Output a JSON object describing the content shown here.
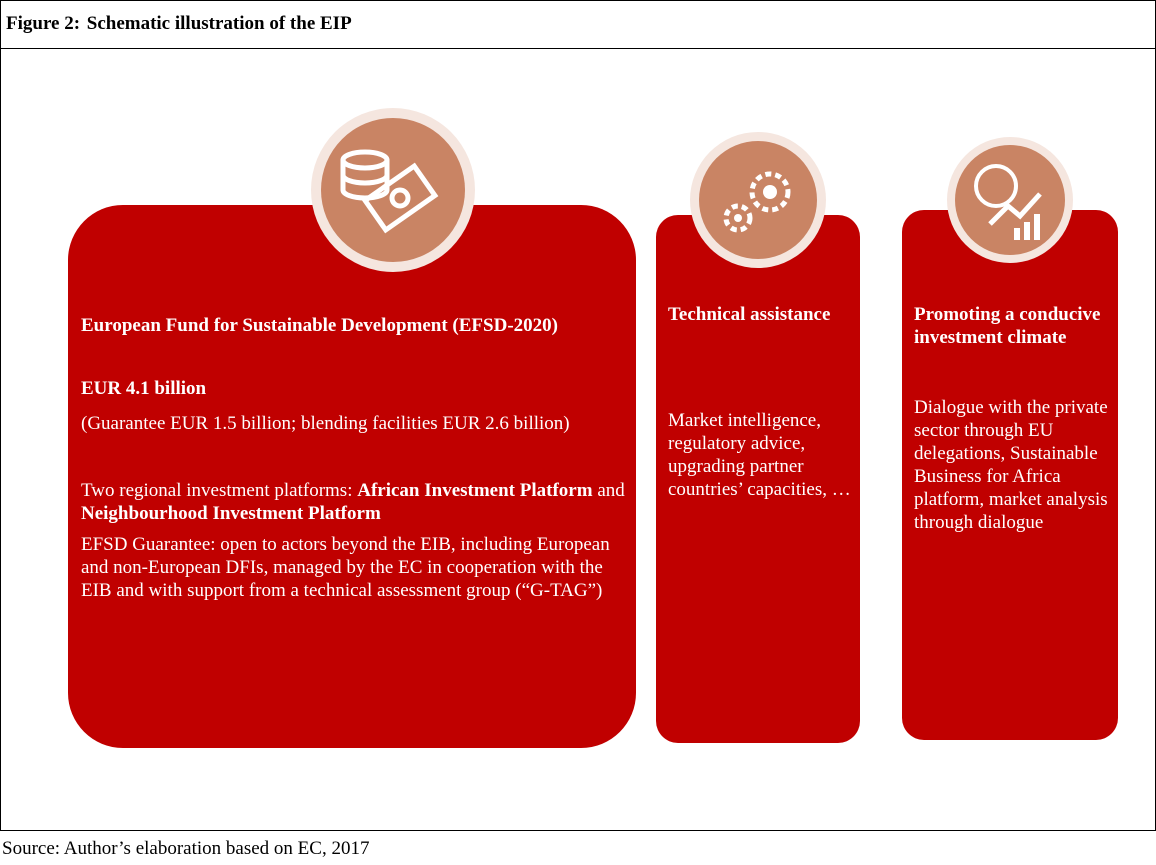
{
  "header": {
    "label": "Figure 2:",
    "title": "Schematic illustration of the EIP"
  },
  "boxes": [
    {
      "title": "European Fund for Sustainable Development (EFSD-2020)",
      "amount": "EUR 4.1 billion",
      "breakdown": "(Guarantee EUR 1.5 billion; blending facilities EUR 2.6 billion)",
      "platforms": [
        "Two regional investment platforms: ",
        "African Investment Platform",
        " and ",
        "Neighbourhood Investment Platform"
      ],
      "guarantee": "EFSD Guarantee: open to actors beyond the EIB, including European and non-European DFIs, managed by the EC in cooperation with the EIB and with support from a technical assessment group (“G-TAG”)"
    },
    {
      "title": "Technical assistance",
      "text": "Market intelligence, regulatory advice, upgrading partner countries’ capacities, …"
    },
    {
      "title": "Promoting a conducive investment climate",
      "text": "Dialogue with the private sector through EU delegations, Sustainable Business for Africa platform, market analysis through dialogue"
    }
  ],
  "source": "Source: Author’s elaboration based on EC, 2017"
}
